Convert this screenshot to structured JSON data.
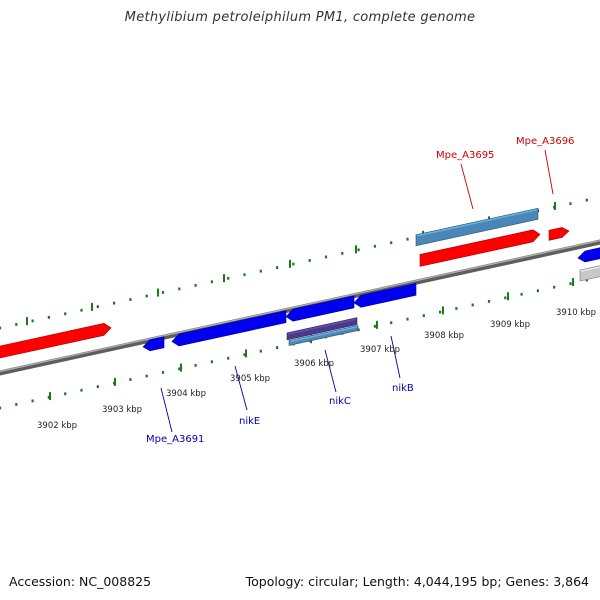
{
  "title": "Methylibium petroleiphilum PM1, complete genome",
  "footer": {
    "accession": "Accession: NC_008825",
    "summary": "Topology: circular; Length: 4,044,195 bp; Genes: 3,864"
  },
  "kbp_ticks": [
    {
      "label": "3902 kbp"
    },
    {
      "label": "3903 kbp"
    },
    {
      "label": "3904 kbp"
    },
    {
      "label": "3905 kbp"
    },
    {
      "label": "3906 kbp"
    },
    {
      "label": "3907 kbp"
    },
    {
      "label": "3908 kbp"
    },
    {
      "label": "3909 kbp"
    },
    {
      "label": "3910 kbp"
    }
  ],
  "gene_labels": [
    {
      "text": "Mpe_A3695",
      "strand": "forward"
    },
    {
      "text": "Mpe_A3696",
      "strand": "forward"
    },
    {
      "text": "Mpe_A3691",
      "strand": "reverse"
    },
    {
      "text": "nikE",
      "strand": "reverse"
    },
    {
      "text": "nikC",
      "strand": "reverse"
    },
    {
      "text": "nikB",
      "strand": "reverse"
    }
  ],
  "colors": {
    "forward_gene": "#ff0000",
    "reverse_gene": "#0000ee",
    "feature_light_blue": "#4a86b8",
    "feature_purple": "#4a3a8a",
    "backbone": "#777777",
    "tick": "#1a7a1a",
    "gene_label_forward": "#cc0000",
    "gene_label_reverse": "#0000aa"
  }
}
